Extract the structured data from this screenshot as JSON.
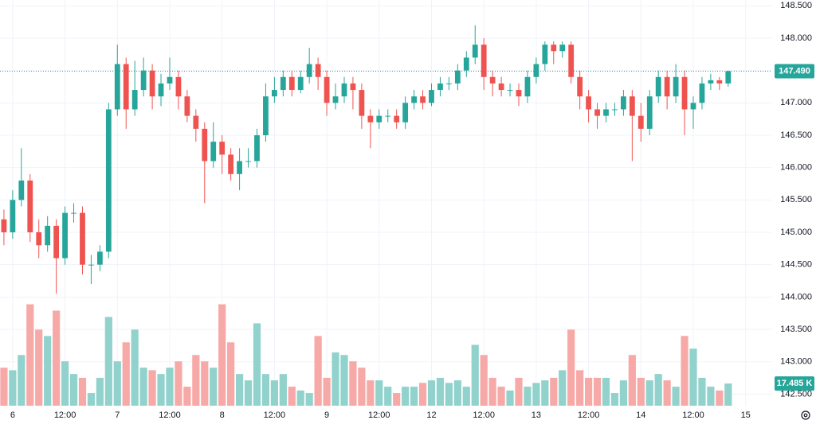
{
  "chart_data": {
    "type": "candlestick",
    "x": [
      -2,
      0,
      2,
      4,
      6,
      8,
      10,
      12,
      14,
      16,
      18,
      20,
      22,
      24,
      26,
      28,
      30,
      32,
      34,
      36,
      38,
      40,
      42,
      44,
      46,
      48,
      50,
      52,
      54,
      56,
      58,
      60,
      62,
      64,
      66,
      68,
      70,
      72,
      74,
      76,
      78,
      80,
      82,
      84,
      86,
      88,
      90,
      92,
      94,
      96,
      98,
      100,
      102,
      104,
      106,
      108,
      110,
      112,
      114,
      116,
      118,
      120,
      122,
      124,
      126,
      128,
      130,
      132,
      134,
      136,
      138,
      140,
      142,
      144,
      146,
      148,
      150,
      152,
      154,
      156,
      158,
      160,
      162,
      164
    ],
    "open": [
      145.2,
      145.0,
      145.5,
      145.8,
      145.0,
      144.8,
      145.1,
      144.6,
      145.3,
      145.3,
      144.5,
      144.5,
      144.7,
      146.9,
      147.6,
      146.9,
      147.2,
      147.5,
      147.1,
      147.3,
      147.4,
      147.1,
      146.8,
      146.6,
      146.1,
      146.4,
      146.2,
      145.9,
      146.1,
      146.1,
      146.5,
      147.1,
      147.2,
      147.4,
      147.2,
      147.4,
      147.6,
      147.4,
      147.0,
      147.1,
      147.3,
      147.2,
      146.8,
      146.7,
      146.8,
      146.8,
      146.7,
      147.0,
      147.1,
      147.0,
      147.2,
      147.3,
      147.3,
      147.5,
      147.7,
      147.9,
      147.4,
      147.3,
      147.2,
      147.2,
      147.1,
      147.4,
      147.6,
      147.9,
      147.8,
      147.9,
      147.4,
      147.1,
      146.9,
      146.8,
      146.9,
      146.9,
      147.1,
      146.8,
      146.6,
      147.1,
      147.4,
      147.1,
      147.4,
      146.9,
      147.0,
      147.3,
      147.35,
      147.3
    ],
    "high": [
      145.35,
      145.65,
      146.3,
      145.9,
      145.2,
      145.25,
      145.2,
      145.4,
      145.45,
      145.4,
      144.65,
      144.8,
      147.0,
      147.9,
      147.7,
      147.65,
      147.7,
      147.6,
      147.45,
      147.7,
      147.5,
      147.2,
      146.9,
      146.7,
      146.7,
      146.5,
      146.3,
      146.3,
      146.3,
      146.6,
      147.3,
      147.4,
      147.5,
      147.5,
      147.5,
      147.85,
      147.7,
      147.5,
      147.3,
      147.4,
      147.4,
      147.3,
      146.9,
      146.9,
      146.9,
      146.9,
      147.1,
      147.2,
      147.2,
      147.3,
      147.4,
      147.4,
      147.6,
      147.8,
      148.2,
      148.0,
      147.5,
      147.4,
      147.3,
      147.3,
      147.5,
      147.7,
      147.95,
      147.95,
      147.95,
      147.95,
      147.5,
      147.2,
      147.0,
      147.0,
      147.0,
      147.2,
      147.2,
      147.0,
      147.2,
      147.5,
      147.5,
      147.6,
      147.5,
      147.1,
      147.4,
      147.45,
      147.4,
      147.5
    ],
    "low": [
      144.8,
      144.9,
      145.4,
      144.85,
      144.6,
      144.7,
      144.05,
      144.5,
      145.15,
      144.35,
      144.2,
      144.4,
      144.6,
      146.8,
      146.6,
      146.8,
      147.1,
      146.9,
      146.95,
      147.2,
      146.9,
      146.7,
      146.4,
      145.45,
      146.0,
      145.9,
      145.8,
      145.65,
      146.0,
      146.0,
      146.4,
      147.0,
      147.1,
      147.1,
      147.15,
      147.3,
      147.2,
      146.8,
      146.9,
      147.0,
      146.9,
      146.6,
      146.3,
      146.6,
      146.7,
      146.6,
      146.6,
      146.9,
      146.9,
      146.95,
      147.1,
      147.2,
      147.2,
      147.4,
      147.6,
      147.2,
      147.1,
      147.1,
      147.1,
      146.95,
      147.0,
      147.3,
      147.5,
      147.6,
      147.7,
      147.3,
      146.9,
      146.7,
      146.6,
      146.7,
      146.8,
      146.8,
      146.1,
      146.4,
      146.5,
      147.0,
      146.9,
      147.0,
      146.5,
      146.6,
      146.9,
      147.2,
      147.2,
      147.25
    ],
    "close": [
      145.0,
      145.5,
      145.8,
      145.0,
      144.8,
      145.1,
      144.6,
      145.3,
      145.3,
      144.5,
      144.5,
      144.7,
      146.9,
      147.6,
      146.9,
      147.2,
      147.5,
      147.1,
      147.3,
      147.4,
      147.1,
      146.8,
      146.6,
      146.1,
      146.4,
      146.2,
      145.9,
      146.1,
      146.1,
      146.5,
      147.1,
      147.2,
      147.4,
      147.2,
      147.4,
      147.6,
      147.4,
      147.0,
      147.1,
      147.3,
      147.2,
      146.8,
      146.7,
      146.8,
      146.8,
      146.7,
      147.0,
      147.1,
      147.0,
      147.2,
      147.3,
      147.3,
      147.5,
      147.7,
      147.9,
      147.4,
      147.3,
      147.2,
      147.2,
      147.1,
      147.4,
      147.6,
      147.9,
      147.8,
      147.9,
      147.4,
      147.1,
      146.9,
      146.8,
      146.9,
      146.9,
      147.1,
      146.8,
      146.6,
      147.1,
      147.4,
      147.1,
      147.4,
      146.9,
      147.0,
      147.3,
      147.35,
      147.3,
      147.49
    ],
    "volume": [
      30,
      28,
      40,
      80,
      60,
      55,
      75,
      35,
      25,
      22,
      10,
      22,
      70,
      35,
      50,
      60,
      30,
      28,
      25,
      30,
      35,
      15,
      40,
      35,
      30,
      80,
      50,
      25,
      20,
      65,
      25,
      20,
      25,
      15,
      12,
      10,
      55,
      22,
      42,
      40,
      35,
      30,
      20,
      20,
      15,
      10,
      15,
      15,
      18,
      20,
      22,
      18,
      20,
      15,
      48,
      40,
      22,
      15,
      12,
      22,
      15,
      18,
      20,
      22,
      28,
      60,
      28,
      22,
      22,
      22,
      10,
      20,
      40,
      22,
      20,
      25,
      20,
      15,
      55,
      45,
      22,
      15,
      12,
      17.485
    ],
    "up_color": "#26a69a",
    "down_color": "#ef5350",
    "volume_up_color": "#92d2cc",
    "volume_down_color": "#f7a9a7",
    "xlim": [
      -2.9,
      173.9
    ],
    "xticks": [
      {
        "value": 0,
        "label": "6"
      },
      {
        "value": 12,
        "label": "12:00"
      },
      {
        "value": 24,
        "label": "7"
      },
      {
        "value": 36,
        "label": "12:00"
      },
      {
        "value": 48,
        "label": "8"
      },
      {
        "value": 60,
        "label": "12:00"
      },
      {
        "value": 72,
        "label": "9"
      },
      {
        "value": 84,
        "label": "12:00"
      },
      {
        "value": 96,
        "label": "12"
      },
      {
        "value": 108,
        "label": "12:00"
      },
      {
        "value": 120,
        "label": "13"
      },
      {
        "value": 132,
        "label": "12:00"
      },
      {
        "value": 144,
        "label": "14"
      },
      {
        "value": 156,
        "label": "12:00"
      },
      {
        "value": 168,
        "label": "15"
      }
    ],
    "ylim": [
      142.32,
      148.59
    ],
    "yticks": [
      {
        "value": 142.5,
        "label": "142.500"
      },
      {
        "value": 143,
        "label": "143.000"
      },
      {
        "value": 143.5,
        "label": "143.500"
      },
      {
        "value": 144,
        "label": "144.000"
      },
      {
        "value": 144.5,
        "label": "144.500"
      },
      {
        "value": 145,
        "label": "145.000"
      },
      {
        "value": 145.5,
        "label": "145.500"
      },
      {
        "value": 146,
        "label": "146.000"
      },
      {
        "value": 146.5,
        "label": "146.500"
      },
      {
        "value": 147,
        "label": "147.000"
      },
      {
        "value": 147.5,
        "label": "147.500"
      },
      {
        "value": 148,
        "label": "148.000"
      },
      {
        "value": 148.5,
        "label": "148.500"
      }
    ],
    "volume_ylim": [
      0,
      320
    ],
    "last_price": {
      "value": 147.49,
      "label": "147.490"
    },
    "last_volume": {
      "value": 17.485,
      "label": "17.485 K"
    },
    "grid": true
  }
}
